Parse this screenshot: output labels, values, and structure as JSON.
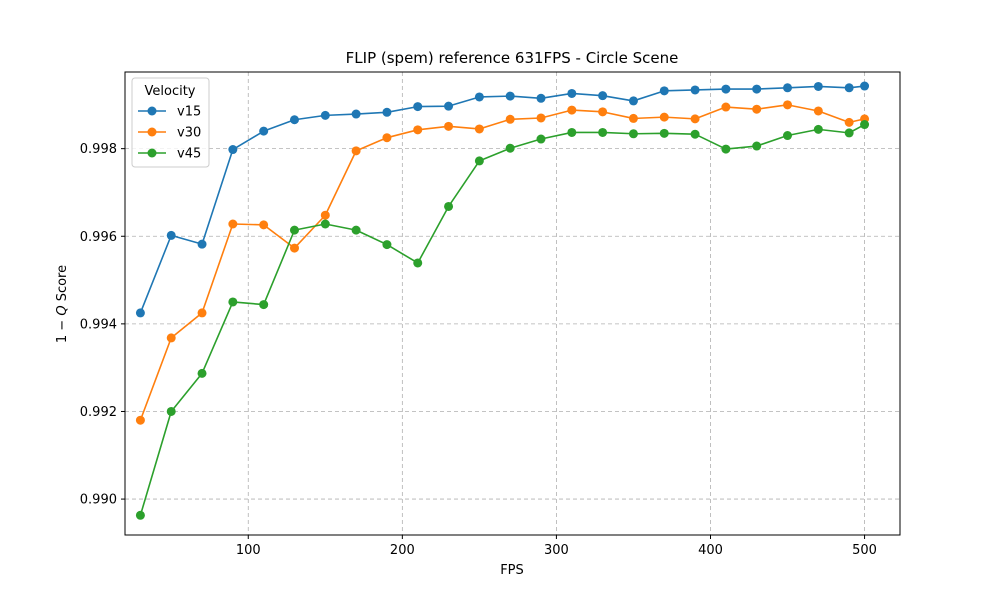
{
  "chart_data": {
    "type": "line",
    "title": "FLIP (spem) reference 631FPS - Circle Scene",
    "xlabel": "FPS",
    "ylabel_prefix": "1 − ",
    "ylabel_var": "Q",
    "ylabel_suffix": " Score",
    "xlim": [
      20,
      523
    ],
    "ylim": [
      0.98918,
      0.99975
    ],
    "xticks": [
      100,
      200,
      300,
      400,
      500
    ],
    "yticks": [
      0.99,
      0.992,
      0.994,
      0.996,
      0.998
    ],
    "ytick_labels": [
      "0.990",
      "0.992",
      "0.994",
      "0.996",
      "0.998"
    ],
    "grid": true,
    "legend": {
      "title": "Velocity",
      "position": "upper-left"
    },
    "x": [
      30,
      50,
      70,
      90,
      110,
      130,
      150,
      170,
      190,
      210,
      230,
      250,
      270,
      290,
      310,
      330,
      350,
      370,
      390,
      410,
      430,
      450,
      470,
      490,
      500
    ],
    "series": [
      {
        "name": "v15",
        "color": "#1f77b4",
        "values": [
          0.99425,
          0.99602,
          0.99582,
          0.99798,
          0.9984,
          0.99866,
          0.99876,
          0.99879,
          0.99883,
          0.99896,
          0.99897,
          0.99918,
          0.9992,
          0.99915,
          0.99926,
          0.99921,
          0.99909,
          0.99932,
          0.99934,
          0.99936,
          0.99936,
          0.99939,
          0.99942,
          0.99939,
          0.99943
        ]
      },
      {
        "name": "v30",
        "color": "#ff7f0e",
        "values": [
          0.9918,
          0.99368,
          0.99425,
          0.99628,
          0.99626,
          0.99573,
          0.99648,
          0.99795,
          0.99825,
          0.99843,
          0.99851,
          0.99845,
          0.99867,
          0.9987,
          0.99888,
          0.99884,
          0.99869,
          0.99872,
          0.99868,
          0.99895,
          0.9989,
          0.999,
          0.99886,
          0.9986,
          0.99868
        ]
      },
      {
        "name": "v45",
        "color": "#2ca02c",
        "values": [
          0.98963,
          0.992,
          0.99287,
          0.9945,
          0.99444,
          0.99614,
          0.99628,
          0.99614,
          0.99581,
          0.99539,
          0.99668,
          0.99772,
          0.99801,
          0.99822,
          0.99837,
          0.99837,
          0.99834,
          0.99835,
          0.99833,
          0.99799,
          0.99806,
          0.9983,
          0.99844,
          0.99836,
          0.99855
        ]
      }
    ]
  }
}
